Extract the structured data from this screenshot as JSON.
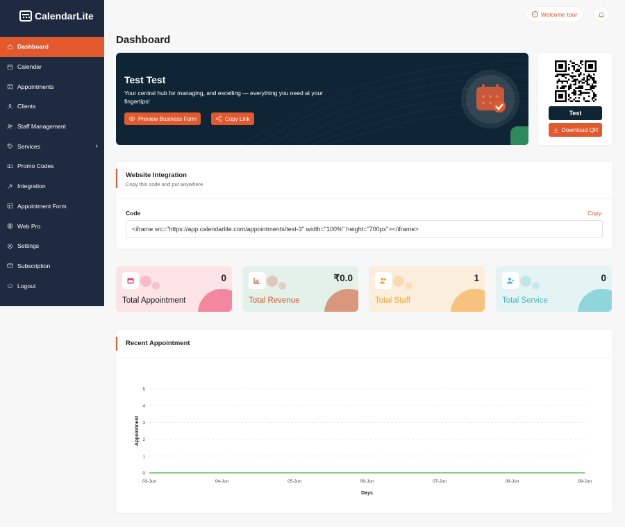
{
  "app": {
    "name": "CalendarLite"
  },
  "sidebar": {
    "items": [
      {
        "label": "Dashboard",
        "icon": "home-icon",
        "active": true
      },
      {
        "label": "Calendar",
        "icon": "calendar-icon"
      },
      {
        "label": "Appointments",
        "icon": "appointments-icon"
      },
      {
        "label": "Clients",
        "icon": "user-icon"
      },
      {
        "label": "Staff Management",
        "icon": "users-icon"
      },
      {
        "label": "Services",
        "icon": "tag-icon",
        "has_submenu": true
      },
      {
        "label": "Promo Codes",
        "icon": "ticket-icon"
      },
      {
        "label": "Integration",
        "icon": "tools-icon"
      },
      {
        "label": "Appointment Form",
        "icon": "form-icon"
      },
      {
        "label": "Web Pro",
        "icon": "globe-icon"
      },
      {
        "label": "Settings",
        "icon": "gear-icon"
      },
      {
        "label": "Subscription",
        "icon": "card-icon"
      },
      {
        "label": "Logout",
        "icon": "power-icon"
      }
    ]
  },
  "topbar": {
    "welcome_tour": "Welcome tour"
  },
  "page": {
    "title": "Dashboard"
  },
  "hero": {
    "title": "Test Test",
    "subtitle": "Your central hub for managing, and excelling — everything you need at your fingertips!",
    "preview_button": "Preview Business Form",
    "copy_button": "Copy Link"
  },
  "qr": {
    "business_name": "Test",
    "download_label": "Download QR"
  },
  "integration": {
    "title": "Website Integration",
    "subtitle": "Copy this code and put anywhere",
    "code_label": "Code",
    "copy_label": "Copy",
    "code": "<iframe src=\"https://app.calendarlite.com/appointments/test-3\" width=\"100%\" height=\"700px\"></iframe>"
  },
  "stats": [
    {
      "label": "Total Appointment",
      "value": "0",
      "bg": "#fbe3e6",
      "accent": "#f4879f",
      "label_color": "#1d1d1f",
      "icon": "calendar-icon"
    },
    {
      "label": "Total Revenue",
      "value": "₹0.0",
      "bg": "#e3f1e9",
      "accent": "#d9977e",
      "label_color": "#d4582c",
      "icon": "chart-icon"
    },
    {
      "label": "Total Staff",
      "value": "1",
      "bg": "#fbeedd",
      "accent": "#f7c27e",
      "label_color": "#f2a53b",
      "icon": "users-icon"
    },
    {
      "label": "Total Service",
      "value": "0",
      "bg": "#e4f3f4",
      "accent": "#8fd6dc",
      "label_color": "#47b5c0",
      "icon": "user-plus-icon"
    }
  ],
  "recent": {
    "title": "Recent Appointment"
  },
  "chart_data": {
    "type": "line",
    "xlabel": "Days",
    "ylabel": "Appointment",
    "categories": [
      "03-Jun",
      "04-Jun",
      "05-Jun",
      "06-Jun",
      "07-Jun",
      "08-Jun",
      "09-Jun"
    ],
    "series": [
      {
        "values": [
          0,
          0,
          0,
          0,
          0,
          0,
          0
        ],
        "color": "#5cc25c"
      }
    ],
    "ylim": [
      0,
      5
    ],
    "yticks": [
      0,
      1,
      2,
      3,
      4,
      5
    ],
    "grid": true
  },
  "colors": {
    "accent": "#e2592d",
    "sidebar": "#1d2a3f",
    "hero": "#0f2535"
  }
}
